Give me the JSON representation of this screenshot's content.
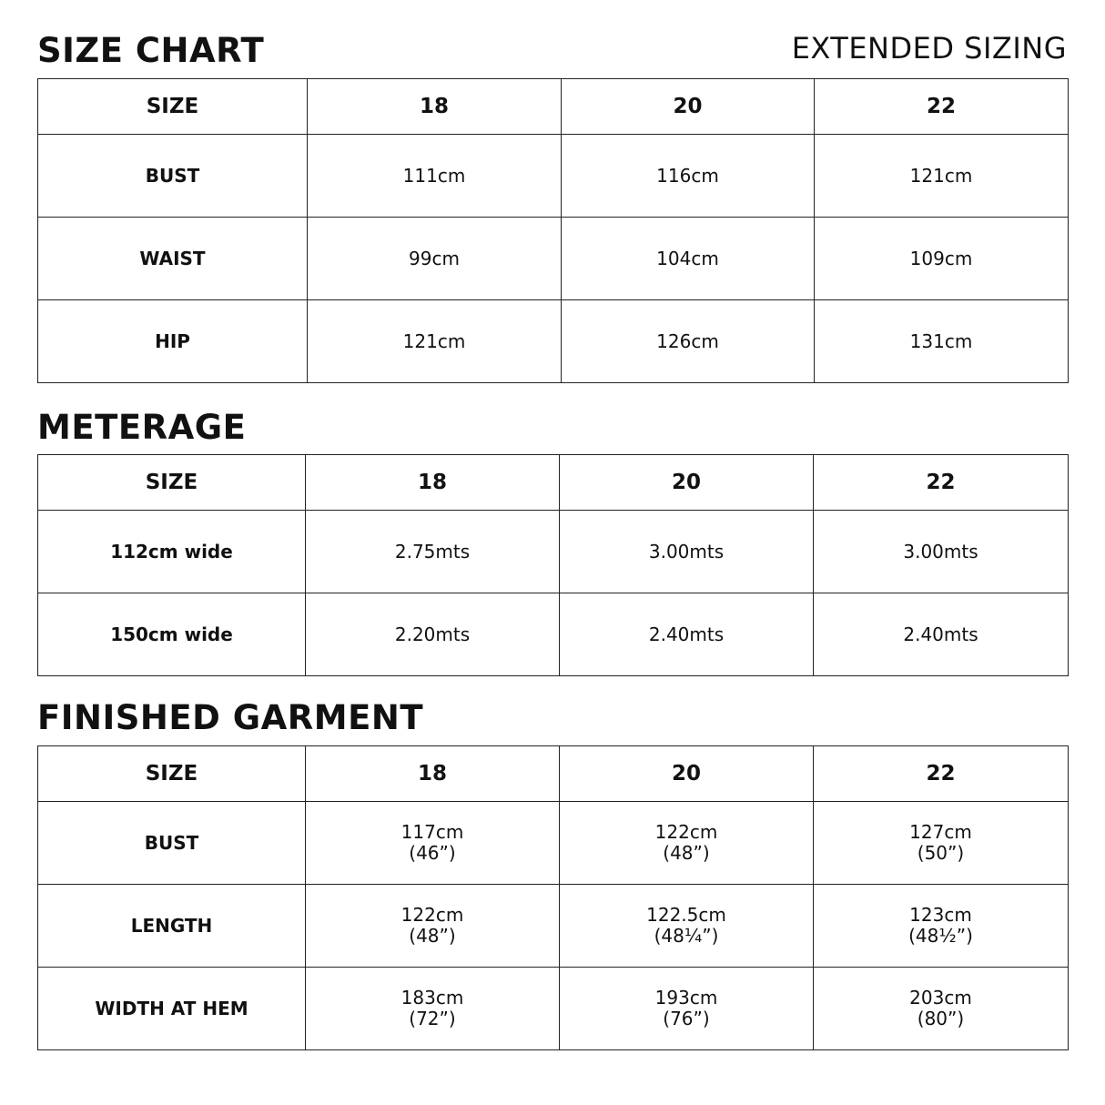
{
  "size_chart": {
    "title": "SIZE CHART",
    "subtitle": "EXTENDED SIZING",
    "header": [
      "SIZE",
      "18",
      "20",
      "22"
    ],
    "rows": [
      {
        "label": "BUST",
        "values": [
          "111cm",
          "116cm",
          "121cm"
        ]
      },
      {
        "label": "WAIST",
        "values": [
          "99cm",
          "104cm",
          "109cm"
        ]
      },
      {
        "label": "HIP",
        "values": [
          "121cm",
          "126cm",
          "131cm"
        ]
      }
    ]
  },
  "meterage": {
    "title": "METERAGE",
    "header": [
      "SIZE",
      "18",
      "20",
      "22"
    ],
    "rows": [
      {
        "label": "112cm wide",
        "values": [
          "2.75mts",
          "3.00mts",
          "3.00mts"
        ]
      },
      {
        "label": "150cm wide",
        "values": [
          "2.20mts",
          "2.40mts",
          "2.40mts"
        ]
      }
    ]
  },
  "finished_garment": {
    "title": "FINISHED GARMENT",
    "header": [
      "SIZE",
      "18",
      "20",
      "22"
    ],
    "rows": [
      {
        "label": "BUST",
        "values": [
          "117cm\n(46”)",
          "122cm\n(48”)",
          "127cm\n(50”)"
        ]
      },
      {
        "label": "LENGTH",
        "values": [
          "122cm\n(48”)",
          "122.5cm\n(48¼”)",
          "123cm\n(48½”)"
        ]
      },
      {
        "label": "WIDTH AT HEM",
        "values": [
          "183cm\n(72”)",
          "193cm\n(76”)",
          "203cm\n(80”)"
        ]
      }
    ]
  }
}
